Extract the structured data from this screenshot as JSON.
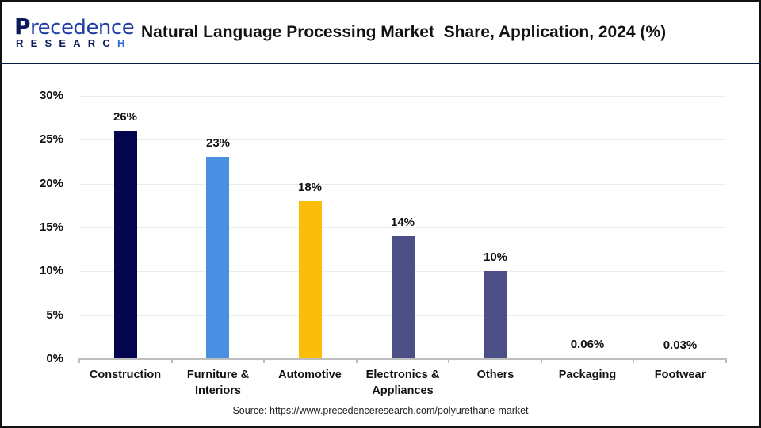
{
  "header": {
    "logo": {
      "main": "Precedence",
      "sub": "RESEARCH"
    },
    "title": "Natural Language Processing Market  Share, Application, 2024 (%)"
  },
  "source": "Source: https://www.precedenceresearch.com/polyurethane-market",
  "colors": {
    "construction": "#03054f",
    "furniture": "#4a90e2",
    "automotive": "#fbbd0a",
    "electronics": "#4b4f85",
    "others": "#4b4f85",
    "packaging": "#4b4f85",
    "footwear": "#4b4f85",
    "header_border": "#0f1a45",
    "gridline": "#ececec",
    "axis": "#bdbdbd"
  },
  "chart_data": {
    "type": "bar",
    "title": "Natural Language Processing Market  Share, Application, 2024 (%)",
    "xlabel": "",
    "ylabel": "",
    "categories": [
      "Construction",
      "Furniture & Interiors",
      "Automotive",
      "Electronics & Appliances",
      "Others",
      "Packaging",
      "Footwear"
    ],
    "category_lines": [
      [
        "Construction"
      ],
      [
        "Furniture &",
        "Interiors"
      ],
      [
        "Automotive"
      ],
      [
        "Electronics &",
        "Appliances"
      ],
      [
        "Others"
      ],
      [
        "Packaging"
      ],
      [
        "Footwear"
      ]
    ],
    "values": [
      26,
      23,
      18,
      14,
      10,
      0.06,
      0.03
    ],
    "value_labels": [
      "26%",
      "23%",
      "18%",
      "14%",
      "10%",
      "0.06%",
      "0.03%"
    ],
    "bar_colors": [
      "#03054f",
      "#4a90e2",
      "#fbbd0a",
      "#4b4f85",
      "#4b4f85",
      "#4b4f85",
      "#4b4f85"
    ],
    "ylim": [
      0,
      30
    ],
    "yticks": [
      0,
      5,
      10,
      15,
      20,
      25,
      30
    ],
    "ytick_labels": [
      "0%",
      "5%",
      "10%",
      "15%",
      "20%",
      "25%",
      "30%"
    ],
    "grid": true,
    "legend": null
  }
}
